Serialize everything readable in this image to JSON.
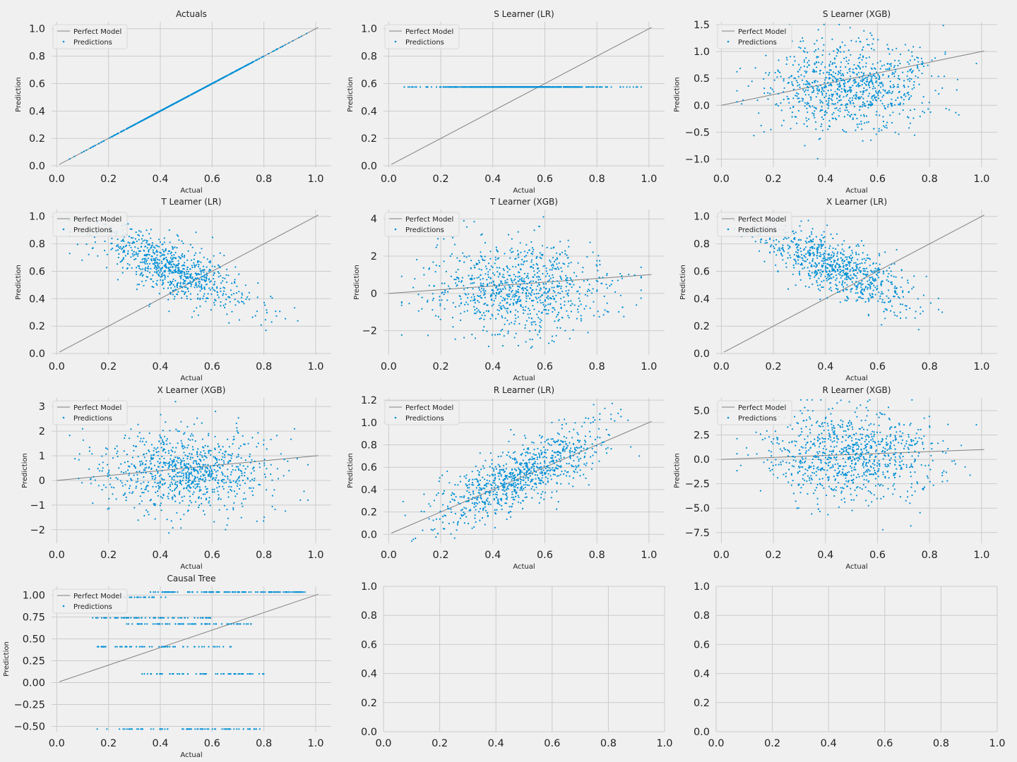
{
  "figure": {
    "background": "#f0f0f0",
    "point_color": "#008fd5",
    "line_color": "#808080"
  },
  "chart_data": [
    {
      "type": "scatter",
      "title": "Actuals",
      "xlabel": "Actual",
      "ylabel": "Prediction",
      "xlim": [
        -0.02,
        1.06
      ],
      "ylim": [
        -0.01,
        1.05
      ],
      "xticks": [
        0.0,
        0.2,
        0.4,
        0.6,
        0.8,
        1.0
      ],
      "xtick_labels": [
        "0.0",
        "0.2",
        "0.4",
        "0.6",
        "0.8",
        "1.0"
      ],
      "yticks": [
        0.0,
        0.2,
        0.4,
        0.6,
        0.8,
        1.0
      ],
      "ytick_labels": [
        "0.0",
        "0.2",
        "0.4",
        "0.6",
        "0.8",
        "1.0"
      ],
      "line": [
        [
          0.01,
          0.01
        ],
        [
          1.01,
          1.01
        ]
      ],
      "legend": [
        "Perfect Model",
        "Predictions"
      ],
      "points": {
        "pattern": "identity",
        "n": 700,
        "seed": 11,
        "x_center": 0.5,
        "x_spread": 0.16,
        "x_range": [
          0.05,
          0.97
        ]
      }
    },
    {
      "type": "scatter",
      "title": "S Learner (LR)",
      "xlabel": "Actual",
      "ylabel": "Prediction",
      "xlim": [
        -0.02,
        1.06
      ],
      "ylim": [
        -0.01,
        1.05
      ],
      "xticks": [
        0.0,
        0.2,
        0.4,
        0.6,
        0.8,
        1.0
      ],
      "xtick_labels": [
        "0.0",
        "0.2",
        "0.4",
        "0.6",
        "0.8",
        "1.0"
      ],
      "yticks": [
        0.0,
        0.2,
        0.4,
        0.6,
        0.8,
        1.0
      ],
      "ytick_labels": [
        "0.0",
        "0.2",
        "0.4",
        "0.6",
        "0.8",
        "1.0"
      ],
      "line": [
        [
          0.01,
          0.01
        ],
        [
          1.01,
          1.01
        ]
      ],
      "legend": [
        "Perfect Model",
        "Predictions"
      ],
      "points": {
        "pattern": "constant",
        "n": 700,
        "seed": 12,
        "y": 0.575,
        "x_center": 0.5,
        "x_spread": 0.16,
        "x_range": [
          0.06,
          0.97
        ]
      }
    },
    {
      "type": "scatter",
      "title": "S Learner (XGB)",
      "xlabel": "Actual",
      "ylabel": "Prediction",
      "xlim": [
        -0.02,
        1.06
      ],
      "ylim": [
        -1.15,
        1.55
      ],
      "xticks": [
        0.0,
        0.2,
        0.4,
        0.6,
        0.8,
        1.0
      ],
      "xtick_labels": [
        "0.0",
        "0.2",
        "0.4",
        "0.6",
        "0.8",
        "1.0"
      ],
      "yticks": [
        -1.0,
        -0.5,
        0.0,
        0.5,
        1.0,
        1.5
      ],
      "ytick_labels": [
        "−1.0",
        "−0.5",
        "0.0",
        "0.5",
        "1.0",
        "1.5"
      ],
      "line": [
        [
          0.0,
          0.0
        ],
        [
          1.01,
          1.01
        ]
      ],
      "legend": [
        "Perfect Model",
        "Predictions"
      ],
      "points": {
        "pattern": "noise",
        "n": 900,
        "seed": 13,
        "x_center": 0.5,
        "x_spread": 0.16,
        "x_range": [
          0.06,
          0.98
        ],
        "a": 0.25,
        "b": 0.2,
        "sd": 0.4,
        "y_clip": [
          -1.1,
          1.5
        ]
      }
    },
    {
      "type": "scatter",
      "title": "T Learner (LR)",
      "xlabel": "Actual",
      "ylabel": "Prediction",
      "xlim": [
        -0.02,
        1.06
      ],
      "ylim": [
        -0.01,
        1.05
      ],
      "xticks": [
        0.0,
        0.2,
        0.4,
        0.6,
        0.8,
        1.0
      ],
      "xtick_labels": [
        "0.0",
        "0.2",
        "0.4",
        "0.6",
        "0.8",
        "1.0"
      ],
      "yticks": [
        0.0,
        0.2,
        0.4,
        0.6,
        0.8,
        1.0
      ],
      "ytick_labels": [
        "0.0",
        "0.2",
        "0.4",
        "0.6",
        "0.8",
        "1.0"
      ],
      "line": [
        [
          0.01,
          0.01
        ],
        [
          1.01,
          1.01
        ]
      ],
      "legend": [
        "Perfect Model",
        "Predictions"
      ],
      "points": {
        "pattern": "linear",
        "n": 800,
        "seed": 14,
        "x_center": 0.45,
        "x_spread": 0.15,
        "x_range": [
          0.05,
          0.97
        ],
        "a": 0.97,
        "b": -0.78,
        "sd": 0.1,
        "y_clip": [
          0.1,
          0.97
        ]
      }
    },
    {
      "type": "scatter",
      "title": "T Learner (XGB)",
      "xlabel": "Actual",
      "ylabel": "Prediction",
      "xlim": [
        -0.02,
        1.06
      ],
      "ylim": [
        -3.3,
        4.5
      ],
      "xticks": [
        0.0,
        0.2,
        0.4,
        0.6,
        0.8,
        1.0
      ],
      "xtick_labels": [
        "0.0",
        "0.2",
        "0.4",
        "0.6",
        "0.8",
        "1.0"
      ],
      "yticks": [
        -2,
        0,
        2,
        4
      ],
      "ytick_labels": [
        "−2",
        "0",
        "2",
        "4"
      ],
      "line": [
        [
          0.0,
          0.0
        ],
        [
          1.01,
          1.01
        ]
      ],
      "legend": [
        "Perfect Model",
        "Predictions"
      ],
      "points": {
        "pattern": "noise",
        "n": 900,
        "seed": 15,
        "x_center": 0.5,
        "x_spread": 0.17,
        "x_range": [
          0.05,
          0.97
        ],
        "a": 0.3,
        "b": 0.0,
        "sd": 1.2,
        "y_clip": [
          -3.2,
          4.3
        ]
      }
    },
    {
      "type": "scatter",
      "title": "X Learner (LR)",
      "xlabel": "Actual",
      "ylabel": "Prediction",
      "xlim": [
        -0.02,
        1.06
      ],
      "ylim": [
        -0.01,
        1.05
      ],
      "xticks": [
        0.0,
        0.2,
        0.4,
        0.6,
        0.8,
        1.0
      ],
      "xtick_labels": [
        "0.0",
        "0.2",
        "0.4",
        "0.6",
        "0.8",
        "1.0"
      ],
      "yticks": [
        0.0,
        0.2,
        0.4,
        0.6,
        0.8,
        1.0
      ],
      "ytick_labels": [
        "0.0",
        "0.2",
        "0.4",
        "0.6",
        "0.8",
        "1.0"
      ],
      "line": [
        [
          0.01,
          0.01
        ],
        [
          1.01,
          1.01
        ]
      ],
      "legend": [
        "Perfect Model",
        "Predictions"
      ],
      "points": {
        "pattern": "linear",
        "n": 800,
        "seed": 16,
        "x_center": 0.45,
        "x_spread": 0.15,
        "x_range": [
          0.05,
          0.97
        ],
        "a": 0.97,
        "b": -0.78,
        "sd": 0.1,
        "y_clip": [
          0.1,
          0.97
        ]
      }
    },
    {
      "type": "scatter",
      "title": "X Learner (XGB)",
      "xlabel": "Actual",
      "ylabel": "Prediction",
      "xlim": [
        -0.02,
        1.06
      ],
      "ylim": [
        -2.55,
        3.35
      ],
      "xticks": [
        0.0,
        0.2,
        0.4,
        0.6,
        0.8,
        1.0
      ],
      "xtick_labels": [
        "0.0",
        "0.2",
        "0.4",
        "0.6",
        "0.8",
        "1.0"
      ],
      "yticks": [
        -2,
        -1,
        0,
        1,
        2,
        3
      ],
      "ytick_labels": [
        "−2",
        "−1",
        "0",
        "1",
        "2",
        "3"
      ],
      "line": [
        [
          0.0,
          0.0
        ],
        [
          1.01,
          1.01
        ]
      ],
      "legend": [
        "Perfect Model",
        "Predictions"
      ],
      "points": {
        "pattern": "noise",
        "n": 900,
        "seed": 17,
        "x_center": 0.5,
        "x_spread": 0.16,
        "x_range": [
          0.05,
          0.97
        ],
        "a": 0.4,
        "b": 0.0,
        "sd": 0.8,
        "y_clip": [
          -2.5,
          3.2
        ]
      }
    },
    {
      "type": "scatter",
      "title": "R Learner (LR)",
      "xlabel": "Actual",
      "ylabel": "Prediction",
      "xlim": [
        -0.02,
        1.06
      ],
      "ylim": [
        -0.08,
        1.22
      ],
      "xticks": [
        0.0,
        0.2,
        0.4,
        0.6,
        0.8,
        1.0
      ],
      "xtick_labels": [
        "0.0",
        "0.2",
        "0.4",
        "0.6",
        "0.8",
        "1.0"
      ],
      "yticks": [
        0.0,
        0.2,
        0.4,
        0.6,
        0.8,
        1.0,
        1.2
      ],
      "ytick_labels": [
        "0.0",
        "0.2",
        "0.4",
        "0.6",
        "0.8",
        "1.0",
        "1.2"
      ],
      "line": [
        [
          0.01,
          0.01
        ],
        [
          1.01,
          1.01
        ]
      ],
      "legend": [
        "Perfect Model",
        "Predictions"
      ],
      "points": {
        "pattern": "linear",
        "n": 900,
        "seed": 18,
        "x_center": 0.5,
        "x_spread": 0.16,
        "x_range": [
          0.05,
          0.97
        ],
        "a": 0.02,
        "b": 1.0,
        "sd": 0.14,
        "y_clip": [
          -0.06,
          1.18
        ]
      }
    },
    {
      "type": "scatter",
      "title": "R Learner (XGB)",
      "xlabel": "Actual",
      "ylabel": "Prediction",
      "xlim": [
        -0.02,
        1.06
      ],
      "ylim": [
        -8.6,
        6.3
      ],
      "xticks": [
        0.0,
        0.2,
        0.4,
        0.6,
        0.8,
        1.0
      ],
      "xtick_labels": [
        "0.0",
        "0.2",
        "0.4",
        "0.6",
        "0.8",
        "1.0"
      ],
      "yticks": [
        -7.5,
        -5.0,
        -2.5,
        0.0,
        2.5,
        5.0
      ],
      "ytick_labels": [
        "−7.5",
        "−5.0",
        "−2.5",
        "0.0",
        "2.5",
        "5.0"
      ],
      "line": [
        [
          0.0,
          0.0
        ],
        [
          1.01,
          1.01
        ]
      ],
      "legend": [
        "Perfect Model",
        "Predictions"
      ],
      "points": {
        "pattern": "noise",
        "n": 900,
        "seed": 19,
        "x_center": 0.5,
        "x_spread": 0.16,
        "x_range": [
          0.06,
          0.98
        ],
        "a": 0.4,
        "b": 0.0,
        "sd": 2.3,
        "y_clip": [
          -8.2,
          6.1
        ]
      }
    },
    {
      "type": "scatter",
      "title": "Causal Tree",
      "xlabel": "Actual",
      "ylabel": "Prediction",
      "xlim": [
        -0.02,
        1.06
      ],
      "ylim": [
        -0.56,
        1.1
      ],
      "xticks": [
        0.0,
        0.2,
        0.4,
        0.6,
        0.8,
        1.0
      ],
      "xtick_labels": [
        "0.0",
        "0.2",
        "0.4",
        "0.6",
        "0.8",
        "1.0"
      ],
      "yticks": [
        -0.5,
        -0.25,
        0.0,
        0.25,
        0.5,
        0.75,
        1.0
      ],
      "ytick_labels": [
        "−0.50",
        "−0.25",
        "0.00",
        "0.25",
        "0.50",
        "0.75",
        "1.00"
      ],
      "line": [
        [
          0.01,
          0.01
        ],
        [
          1.01,
          1.01
        ]
      ],
      "legend": [
        "Perfect Model",
        "Predictions"
      ],
      "points": {
        "pattern": "levels",
        "seed": 20,
        "levels": [
          {
            "y": 1.035,
            "n": 120,
            "x_range": [
              0.36,
              0.96
            ]
          },
          {
            "y": 0.975,
            "n": 25,
            "x_range": [
              0.25,
              0.43
            ]
          },
          {
            "y": 0.74,
            "n": 70,
            "x_range": [
              0.13,
              0.6
            ]
          },
          {
            "y": 0.67,
            "n": 70,
            "x_range": [
              0.26,
              0.76
            ]
          },
          {
            "y": 0.41,
            "n": 60,
            "x_range": [
              0.13,
              0.68
            ]
          },
          {
            "y": 0.1,
            "n": 60,
            "x_range": [
              0.32,
              0.8
            ]
          },
          {
            "y": -0.53,
            "n": 80,
            "x_range": [
              0.15,
              0.8
            ]
          }
        ]
      }
    },
    {
      "type": "empty",
      "xlim": [
        0.0,
        1.0
      ],
      "ylim": [
        0.0,
        1.0
      ],
      "xticks": [
        0.0,
        0.2,
        0.4,
        0.6,
        0.8,
        1.0
      ],
      "xtick_labels": [
        "0.0",
        "0.2",
        "0.4",
        "0.6",
        "0.8",
        "1.0"
      ],
      "yticks": [
        0.0,
        0.2,
        0.4,
        0.6,
        0.8,
        1.0
      ],
      "ytick_labels": [
        "0.0",
        "0.2",
        "0.4",
        "0.6",
        "0.8",
        "1.0"
      ]
    },
    {
      "type": "empty",
      "xlim": [
        0.0,
        1.0
      ],
      "ylim": [
        0.0,
        1.0
      ],
      "xticks": [
        0.0,
        0.2,
        0.4,
        0.6,
        0.8,
        1.0
      ],
      "xtick_labels": [
        "0.0",
        "0.2",
        "0.4",
        "0.6",
        "0.8",
        "1.0"
      ],
      "yticks": [
        0.0,
        0.2,
        0.4,
        0.6,
        0.8,
        1.0
      ],
      "ytick_labels": [
        "0.0",
        "0.2",
        "0.4",
        "0.6",
        "0.8",
        "1.0"
      ]
    }
  ]
}
